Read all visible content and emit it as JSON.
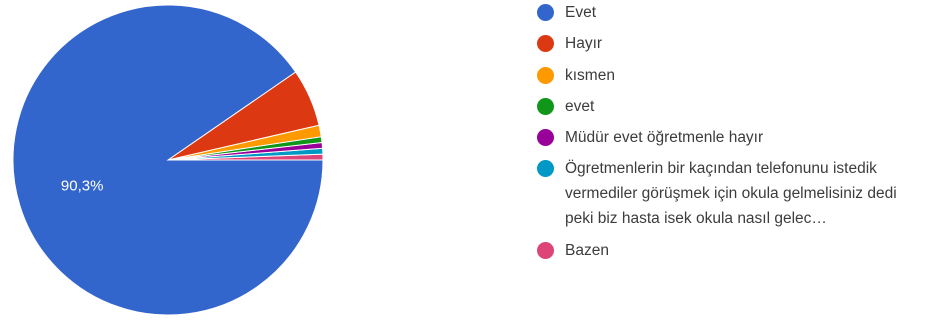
{
  "chart_data": {
    "type": "pie",
    "series": [
      {
        "name": "Evet",
        "value": 90.3,
        "color": "#3366cc"
      },
      {
        "name": "Hayır",
        "value": 6.0,
        "color": "#dc3912"
      },
      {
        "name": "kısmen",
        "value": 1.2,
        "color": "#ff9900"
      },
      {
        "name": "evet",
        "value": 0.6,
        "color": "#109618"
      },
      {
        "name": "Müdür evet öğretmenle hayır",
        "value": 0.6,
        "color": "#990099"
      },
      {
        "name": "Ögretmenlerin bir kaçından telefonunu istedik vermediler görüşmek için okula gelmelisiniz dedi peki biz hasta isek okula nasıl gelec…",
        "value": 0.6,
        "color": "#0099c6"
      },
      {
        "name": "Bazen",
        "value": 0.6,
        "color": "#dd4477"
      }
    ],
    "data_labels": [
      "90,3%"
    ],
    "legend_position": "right",
    "title": ""
  }
}
